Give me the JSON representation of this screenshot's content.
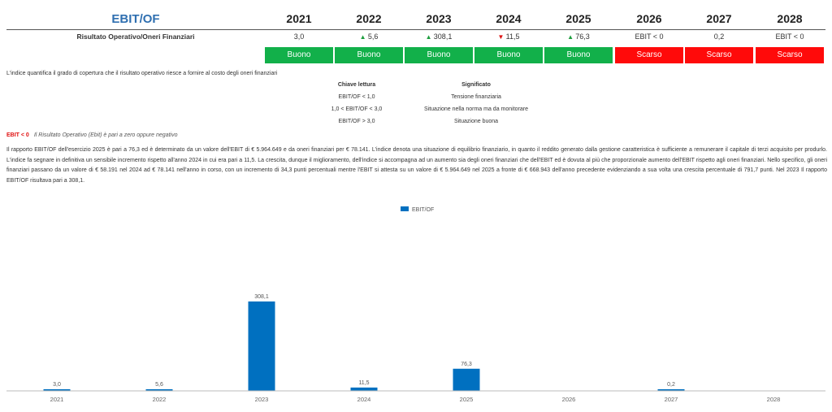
{
  "table": {
    "title": "EBIT/OF",
    "row_label": "Risultato Operativo/Oneri Finanziari",
    "years": [
      "2021",
      "2022",
      "2023",
      "2024",
      "2025",
      "2026",
      "2027",
      "2028"
    ],
    "values": [
      {
        "text": "3,0",
        "trend": ""
      },
      {
        "text": "5,6",
        "trend": "up"
      },
      {
        "text": "308,1",
        "trend": "up"
      },
      {
        "text": "11,5",
        "trend": "down"
      },
      {
        "text": "76,3",
        "trend": "up"
      },
      {
        "text": "EBIT < 0",
        "trend": ""
      },
      {
        "text": "0,2",
        "trend": ""
      },
      {
        "text": "EBIT < 0",
        "trend": ""
      }
    ],
    "ratings": [
      {
        "text": "Buono",
        "status": "good"
      },
      {
        "text": "Buono",
        "status": "good"
      },
      {
        "text": "Buono",
        "status": "good"
      },
      {
        "text": "Buono",
        "status": "good"
      },
      {
        "text": "Buono",
        "status": "good"
      },
      {
        "text": "Scarso",
        "status": "bad"
      },
      {
        "text": "Scarso",
        "status": "bad"
      },
      {
        "text": "Scarso",
        "status": "bad"
      }
    ],
    "colors": {
      "good": "#12b04a",
      "bad": "#ff0a0a",
      "title": "#2f6fb0",
      "bar": "#0070c0"
    }
  },
  "description": "L'indice quantifica il grado di copertura che il risultato operativo riesce a fornire al costo degli oneri finanziari",
  "key": {
    "col1_header": "Chiave lettura",
    "col2_header": "Significato",
    "rows": [
      {
        "range": "EBIT/OF < 1,0",
        "meaning": "Tensione finanziaria"
      },
      {
        "range": "1,0 < EBIT/OF < 3,0",
        "meaning": "Situazione nella norma ma da monitorare"
      },
      {
        "range": "EBIT/OF > 3,0",
        "meaning": "Situazione buona"
      }
    ]
  },
  "note": {
    "label": "EBIT < 0",
    "text": "Il Risultato Operativo (Ebit) è pari a zero oppure negativo"
  },
  "paragraph": "Il rapporto EBIT/OF dell'esercizio 2025 è pari a 76,3 ed è determinato da un valore dell'EBIT di € 5.964.649 e da oneri finanziari per € 78.141. L'indice denota una situazione di equilibrio finanziario, in quanto il reddito generato dalla gestione caratteristica è sufficiente a remunerare il capitale di terzi acquisito per produrlo. L'indice fa segnare in definitiva un sensibile incremento rispetto all'anno 2024 in cui era pari a 11,5. La crescita, dunque il miglioramento, dell'indice si accompagna ad un aumento sia degli oneri finanziari che dell'EBIT ed è dovuta al più che proporzionale aumento dell'EBIT rispetto agli oneri finanziari. Nello specifico, gli oneri finanziari passano da un valore di € 58.191 nel 2024 ad € 78.141 nell'anno in corso, con un incremento di 34,3 punti percentuali mentre l'EBIT si attesta su un valore di € 5.964.649 nel 2025 a fronte di € 668.943 dell'anno precedente evidenziando a sua volta una crescita percentuale di 791,7 punti. Nel 2023 Il rapporto EBIT/OF risultava pari a 308,1.",
  "chart_data": {
    "type": "bar",
    "categories": [
      "2021",
      "2022",
      "2023",
      "2024",
      "2025",
      "2026",
      "2027",
      "2028"
    ],
    "series": [
      {
        "name": "EBIT/OF",
        "values": [
          3.0,
          5.6,
          308.1,
          11.5,
          76.3,
          null,
          0.2,
          null
        ]
      }
    ],
    "data_labels": [
      "3,0",
      "5,6",
      "308,1",
      "11,5",
      "76,3",
      "",
      "0,2",
      ""
    ],
    "ylim": [
      0,
      308.1
    ],
    "legend": "top-center",
    "grid": false,
    "color": "#0070c0"
  }
}
